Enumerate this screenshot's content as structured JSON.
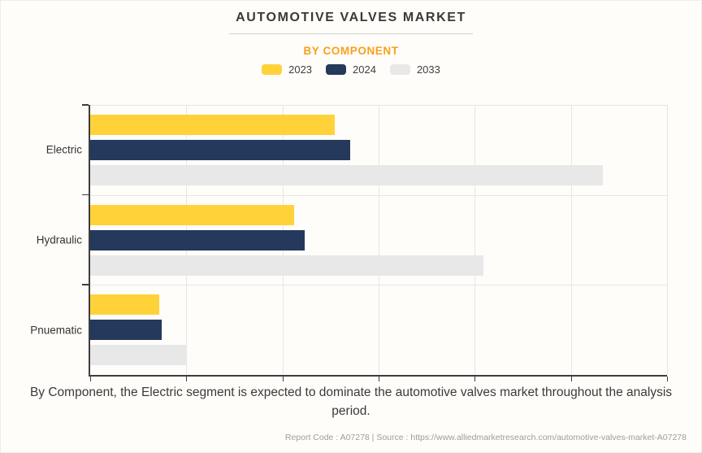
{
  "header": {
    "title": "AUTOMOTIVE VALVES MARKET",
    "subtitle": "BY COMPONENT",
    "subtitle_color": "#F8A11D"
  },
  "chart_data": {
    "type": "bar",
    "orientation": "horizontal",
    "title": "AUTOMOTIVE VALVES MARKET",
    "subtitle": "BY COMPONENT",
    "categories": [
      "Electric",
      "Hydraulic",
      "Pnuematic"
    ],
    "series": [
      {
        "name": "2023",
        "color": "#FFD23A",
        "values": [
          2.54,
          2.12,
          0.72
        ]
      },
      {
        "name": "2024",
        "color": "#24395B",
        "values": [
          2.7,
          2.23,
          0.74
        ]
      },
      {
        "name": "2033",
        "color": "#E8E8E8",
        "values": [
          5.33,
          4.09,
          1.01
        ]
      }
    ],
    "xlim": [
      0,
      6
    ],
    "x_gridline_count": 6,
    "x_tick_labels_visible": false,
    "grid": true,
    "legend_position": "top",
    "legend_entries": [
      "2023",
      "2024",
      "2033"
    ]
  },
  "caption": {
    "text": "By Component, the Electric segment is expected to dominate the automotive valves market throughout the analysis period."
  },
  "footer": {
    "text": "Report Code : A07278  |  Source : https://www.alliedmarketresearch.com/automotive-valves-market-A07278"
  }
}
